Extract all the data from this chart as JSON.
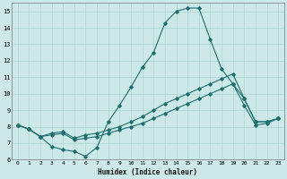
{
  "xlabel": "Humidex (Indice chaleur)",
  "bg_color": "#cce9e8",
  "grid_color": "#aad4d3",
  "line_color": "#1e6e6e",
  "xlim": [
    -0.5,
    23.5
  ],
  "ylim": [
    6,
    15.5
  ],
  "xticks": [
    0,
    1,
    2,
    3,
    4,
    5,
    6,
    7,
    8,
    9,
    10,
    11,
    12,
    13,
    14,
    15,
    16,
    17,
    18,
    19,
    20,
    21,
    22,
    23
  ],
  "yticks": [
    6,
    7,
    8,
    9,
    10,
    11,
    12,
    13,
    14,
    15
  ],
  "line1_x": [
    0,
    1,
    2,
    3,
    4,
    5,
    6,
    7,
    8,
    9,
    10,
    11,
    12,
    13,
    14,
    15,
    16,
    17,
    18,
    19,
    20,
    21,
    22,
    23
  ],
  "line1_y": [
    8.1,
    7.85,
    7.4,
    6.8,
    6.6,
    6.5,
    6.2,
    6.75,
    8.3,
    9.3,
    10.4,
    11.6,
    12.5,
    14.3,
    15.0,
    15.2,
    15.2,
    13.3,
    11.5,
    10.6,
    9.7,
    8.3,
    8.3,
    8.5
  ],
  "line2_x": [
    0,
    1,
    2,
    3,
    4,
    5,
    6,
    7,
    8,
    9,
    10,
    11,
    12,
    13,
    14,
    15,
    16,
    17,
    18,
    19,
    20,
    21,
    22,
    23
  ],
  "line2_y": [
    8.1,
    7.85,
    7.4,
    7.6,
    7.7,
    7.3,
    7.5,
    7.6,
    7.8,
    8.0,
    8.3,
    8.6,
    9.0,
    9.4,
    9.7,
    10.0,
    10.3,
    10.6,
    10.9,
    11.2,
    9.7,
    8.3,
    8.3,
    8.5
  ],
  "line3_x": [
    0,
    1,
    2,
    3,
    4,
    5,
    6,
    7,
    8,
    9,
    10,
    11,
    12,
    13,
    14,
    15,
    16,
    17,
    18,
    19,
    20,
    21,
    22,
    23
  ],
  "line3_y": [
    8.1,
    7.85,
    7.4,
    7.5,
    7.6,
    7.2,
    7.3,
    7.4,
    7.6,
    7.8,
    8.0,
    8.2,
    8.5,
    8.8,
    9.1,
    9.4,
    9.7,
    10.0,
    10.3,
    10.6,
    9.3,
    8.1,
    8.2,
    8.5
  ]
}
